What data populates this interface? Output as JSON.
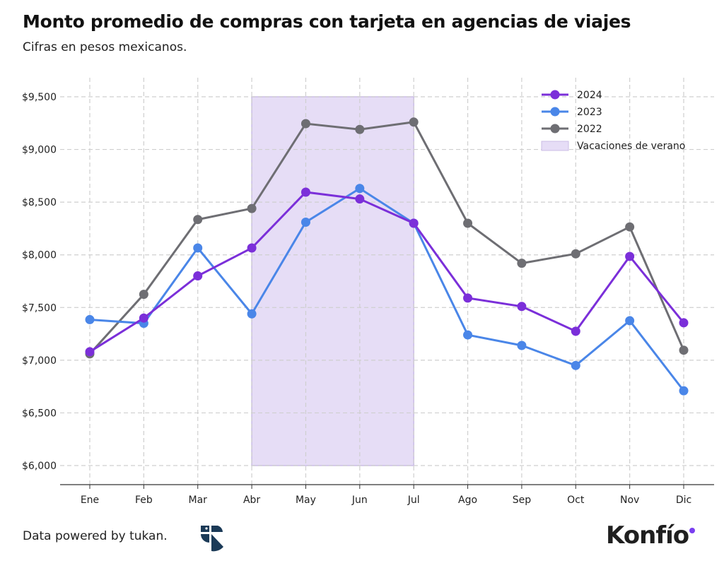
{
  "chart_data": {
    "type": "line",
    "title": "Monto promedio de compras con tarjeta en agencias de viajes",
    "subtitle": "Cifras en pesos mexicanos.",
    "categories": [
      "Ene",
      "Feb",
      "Mar",
      "Abr",
      "May",
      "Jun",
      "Jul",
      "Ago",
      "Sep",
      "Oct",
      "Nov",
      "Dic"
    ],
    "ylim": [
      6000,
      9500
    ],
    "yticks": [
      6000,
      6500,
      7000,
      7500,
      8000,
      8500,
      9000,
      9500
    ],
    "ytick_labels": [
      "$6,000",
      "$6,500",
      "$7,000",
      "$7,500",
      "$8,000",
      "$8,500",
      "$9,000",
      "$9,500"
    ],
    "grid": true,
    "legend_position": "top-right",
    "series": [
      {
        "name": "2024",
        "color": "#7B2FD9",
        "values": [
          7080,
          7400,
          7800,
          8065,
          8595,
          8530,
          8300,
          7590,
          7510,
          7275,
          7985,
          7355
        ]
      },
      {
        "name": "2023",
        "color": "#4A86E8",
        "values": [
          7385,
          7350,
          8065,
          7440,
          8310,
          8630,
          8300,
          7240,
          7140,
          6950,
          7375,
          6710
        ]
      },
      {
        "name": "2022",
        "color": "#6E6E73",
        "values": [
          7060,
          7625,
          8335,
          8440,
          9245,
          9190,
          9260,
          8300,
          7920,
          8010,
          8265,
          7095
        ]
      }
    ],
    "shaded_region": {
      "label": "Vacaciones de verano",
      "from": "Abr",
      "to": "Jul",
      "color": "#E6DDF6"
    }
  },
  "footer": {
    "source": "Data powered by tukan.",
    "brand": "Konfío"
  }
}
